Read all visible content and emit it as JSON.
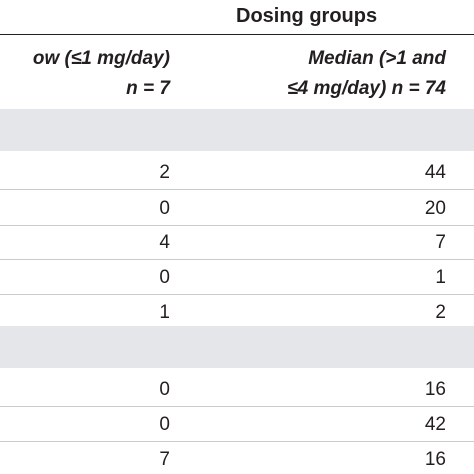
{
  "header": {
    "group_title": "Dosing groups",
    "col_low_line1": "ow (≤1 mg/day)",
    "col_low_line2": "n = 7",
    "col_median_line1": "Median (>1 and",
    "col_median_line2": "≤4 mg/day) n = 74"
  },
  "section1": {
    "rows": [
      {
        "low": "2",
        "median": "44"
      },
      {
        "low": "0",
        "median": "20"
      },
      {
        "low": "4",
        "median": "7"
      },
      {
        "low": "0",
        "median": "1"
      },
      {
        "low": "1",
        "median": "2"
      }
    ]
  },
  "section2": {
    "rows": [
      {
        "low": "0",
        "median": "16"
      },
      {
        "low": "0",
        "median": "42"
      },
      {
        "low": "7",
        "median": "16"
      }
    ]
  }
}
